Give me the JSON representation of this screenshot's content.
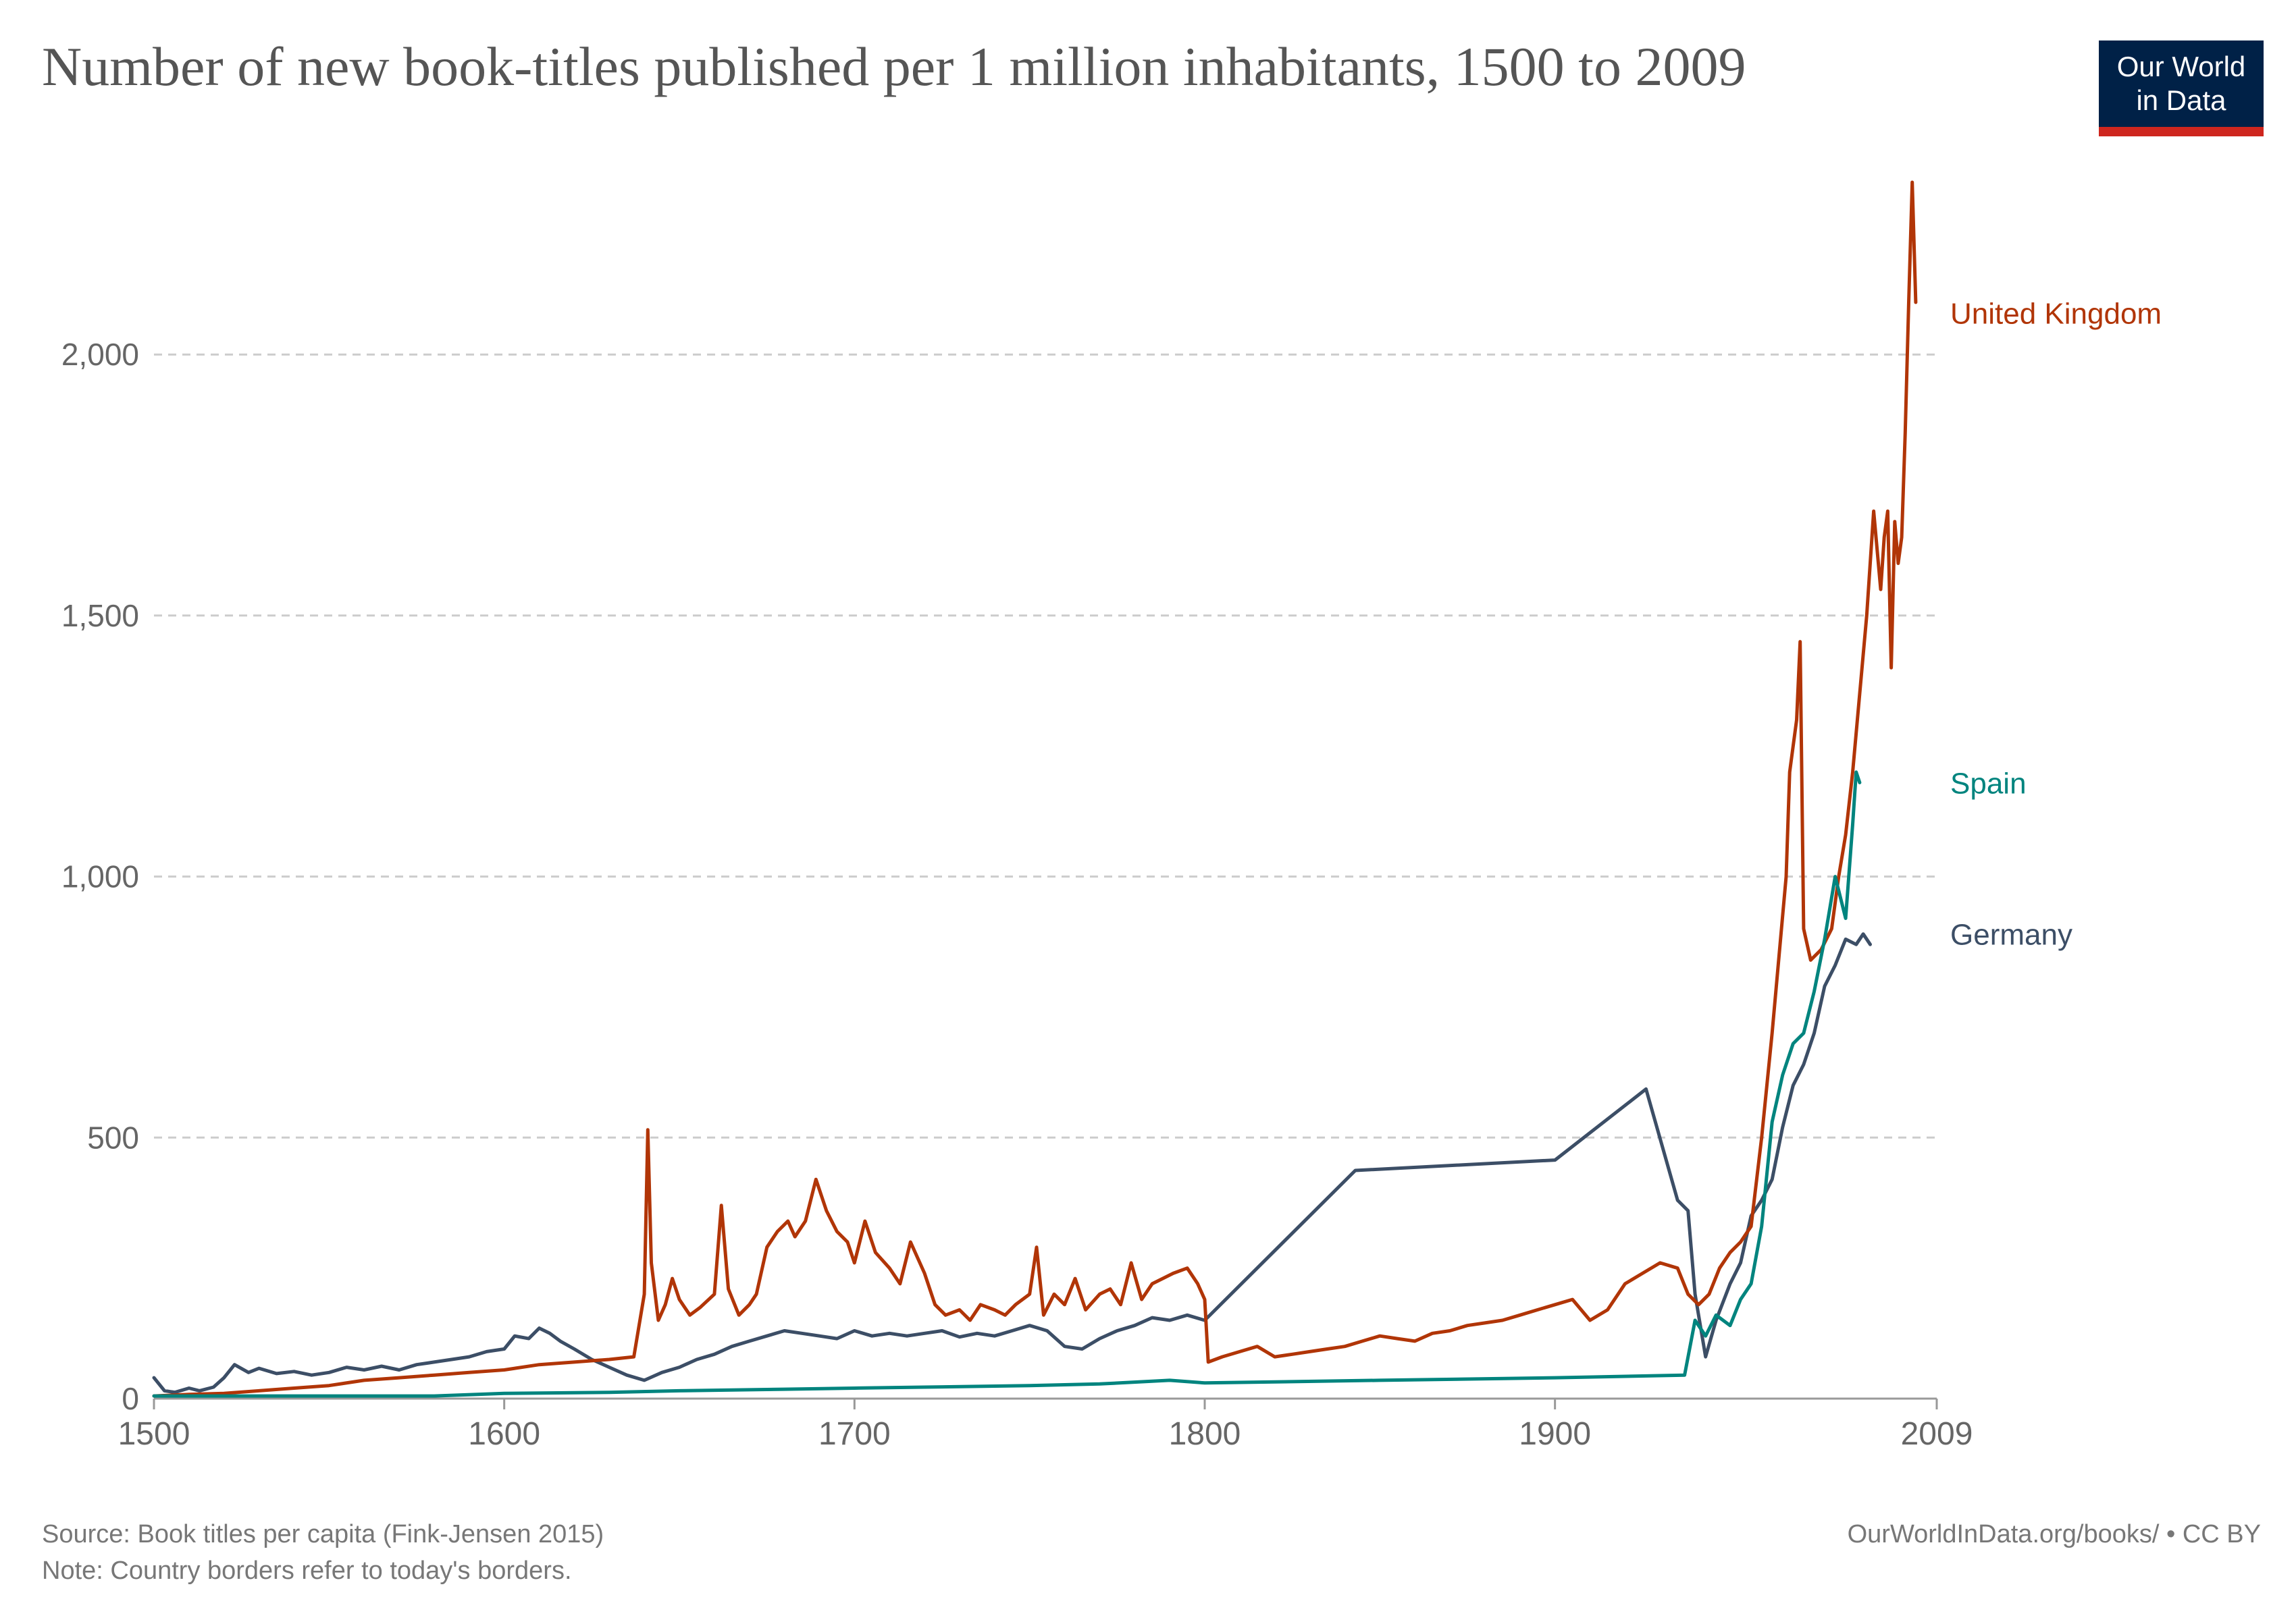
{
  "header": {
    "title": "Number of new book-titles published per 1 million inhabitants, 1500 to 2009",
    "logo_line1": "Our World",
    "logo_line2": "in Data"
  },
  "footer": {
    "source": "Source: Book titles per capita (Fink-Jensen 2015)",
    "note": "Note: Country borders refer to today's borders.",
    "url": "OurWorldInData.org/books/ • CC BY"
  },
  "chart_data": {
    "type": "line",
    "title": "Number of new book-titles published per 1 million inhabitants, 1500 to 2009",
    "xlabel": "",
    "ylabel": "",
    "xlim": [
      1500,
      2009
    ],
    "ylim": [
      0,
      2330
    ],
    "x_ticks": [
      1500,
      1600,
      1700,
      1800,
      1900,
      2009
    ],
    "x_tick_labels": [
      "1500",
      "1600",
      "1700",
      "1800",
      "1900",
      "2009"
    ],
    "y_ticks": [
      0,
      500,
      1000,
      1500,
      2000
    ],
    "y_tick_labels": [
      "0",
      "500",
      "1,000",
      "1,500",
      "2,000"
    ],
    "grid": "horizontal dashed",
    "legend": "line-end labels, right",
    "series": [
      {
        "name": "Germany",
        "color": "#3c4e66",
        "points": [
          [
            1500,
            40
          ],
          [
            1503,
            15
          ],
          [
            1506,
            12
          ],
          [
            1510,
            20
          ],
          [
            1513,
            15
          ],
          [
            1517,
            22
          ],
          [
            1520,
            40
          ],
          [
            1523,
            65
          ],
          [
            1527,
            50
          ],
          [
            1530,
            58
          ],
          [
            1535,
            48
          ],
          [
            1540,
            52
          ],
          [
            1545,
            45
          ],
          [
            1550,
            50
          ],
          [
            1555,
            60
          ],
          [
            1560,
            55
          ],
          [
            1565,
            62
          ],
          [
            1570,
            55
          ],
          [
            1575,
            65
          ],
          [
            1580,
            70
          ],
          [
            1585,
            75
          ],
          [
            1590,
            80
          ],
          [
            1595,
            90
          ],
          [
            1600,
            95
          ],
          [
            1603,
            120
          ],
          [
            1607,
            115
          ],
          [
            1610,
            135
          ],
          [
            1613,
            125
          ],
          [
            1616,
            110
          ],
          [
            1620,
            95
          ],
          [
            1625,
            75
          ],
          [
            1630,
            60
          ],
          [
            1635,
            45
          ],
          [
            1640,
            35
          ],
          [
            1645,
            50
          ],
          [
            1650,
            60
          ],
          [
            1655,
            75
          ],
          [
            1660,
            85
          ],
          [
            1665,
            100
          ],
          [
            1670,
            110
          ],
          [
            1675,
            120
          ],
          [
            1680,
            130
          ],
          [
            1685,
            125
          ],
          [
            1690,
            120
          ],
          [
            1695,
            115
          ],
          [
            1700,
            130
          ],
          [
            1705,
            120
          ],
          [
            1710,
            125
          ],
          [
            1715,
            120
          ],
          [
            1720,
            125
          ],
          [
            1725,
            130
          ],
          [
            1730,
            118
          ],
          [
            1735,
            125
          ],
          [
            1740,
            120
          ],
          [
            1745,
            130
          ],
          [
            1750,
            140
          ],
          [
            1755,
            130
          ],
          [
            1760,
            100
          ],
          [
            1765,
            95
          ],
          [
            1770,
            115
          ],
          [
            1775,
            130
          ],
          [
            1780,
            140
          ],
          [
            1785,
            155
          ],
          [
            1790,
            150
          ],
          [
            1795,
            160
          ],
          [
            1800,
            150
          ],
          [
            1843,
            437
          ],
          [
            1900,
            457
          ],
          [
            1926,
            593
          ],
          [
            1935,
            380
          ],
          [
            1938,
            360
          ],
          [
            1940,
            200
          ],
          [
            1943,
            80
          ],
          [
            1946,
            150
          ],
          [
            1950,
            220
          ],
          [
            1953,
            260
          ],
          [
            1956,
            350
          ],
          [
            1959,
            380
          ],
          [
            1962,
            420
          ],
          [
            1965,
            520
          ],
          [
            1968,
            600
          ],
          [
            1971,
            640
          ],
          [
            1974,
            700
          ],
          [
            1977,
            790
          ],
          [
            1980,
            830
          ],
          [
            1983,
            880
          ],
          [
            1986,
            870
          ],
          [
            1988,
            890
          ],
          [
            1990,
            870
          ]
        ]
      },
      {
        "name": "United Kingdom",
        "color": "#b13507",
        "points": [
          [
            1500,
            5
          ],
          [
            1510,
            8
          ],
          [
            1520,
            10
          ],
          [
            1530,
            15
          ],
          [
            1540,
            20
          ],
          [
            1550,
            25
          ],
          [
            1560,
            35
          ],
          [
            1570,
            40
          ],
          [
            1580,
            45
          ],
          [
            1590,
            50
          ],
          [
            1600,
            55
          ],
          [
            1610,
            65
          ],
          [
            1620,
            70
          ],
          [
            1630,
            75
          ],
          [
            1637,
            80
          ],
          [
            1640,
            200
          ],
          [
            1641,
            515
          ],
          [
            1642,
            260
          ],
          [
            1644,
            150
          ],
          [
            1646,
            180
          ],
          [
            1648,
            230
          ],
          [
            1650,
            190
          ],
          [
            1653,
            160
          ],
          [
            1656,
            175
          ],
          [
            1660,
            200
          ],
          [
            1662,
            370
          ],
          [
            1664,
            210
          ],
          [
            1667,
            160
          ],
          [
            1670,
            180
          ],
          [
            1672,
            200
          ],
          [
            1675,
            290
          ],
          [
            1678,
            320
          ],
          [
            1681,
            340
          ],
          [
            1683,
            310
          ],
          [
            1686,
            340
          ],
          [
            1689,
            420
          ],
          [
            1692,
            360
          ],
          [
            1695,
            320
          ],
          [
            1698,
            300
          ],
          [
            1700,
            260
          ],
          [
            1703,
            340
          ],
          [
            1706,
            280
          ],
          [
            1710,
            250
          ],
          [
            1713,
            220
          ],
          [
            1716,
            300
          ],
          [
            1720,
            240
          ],
          [
            1723,
            180
          ],
          [
            1726,
            160
          ],
          [
            1730,
            170
          ],
          [
            1733,
            150
          ],
          [
            1736,
            180
          ],
          [
            1740,
            170
          ],
          [
            1743,
            160
          ],
          [
            1746,
            180
          ],
          [
            1750,
            200
          ],
          [
            1752,
            290
          ],
          [
            1754,
            160
          ],
          [
            1757,
            200
          ],
          [
            1760,
            180
          ],
          [
            1763,
            230
          ],
          [
            1766,
            170
          ],
          [
            1770,
            200
          ],
          [
            1773,
            210
          ],
          [
            1776,
            180
          ],
          [
            1779,
            260
          ],
          [
            1782,
            190
          ],
          [
            1785,
            220
          ],
          [
            1788,
            230
          ],
          [
            1791,
            240
          ],
          [
            1795,
            250
          ],
          [
            1798,
            220
          ],
          [
            1800,
            190
          ],
          [
            1801,
            70
          ],
          [
            1805,
            80
          ],
          [
            1810,
            90
          ],
          [
            1815,
            100
          ],
          [
            1820,
            80
          ],
          [
            1825,
            85
          ],
          [
            1830,
            90
          ],
          [
            1835,
            95
          ],
          [
            1840,
            100
          ],
          [
            1845,
            110
          ],
          [
            1850,
            120
          ],
          [
            1855,
            115
          ],
          [
            1860,
            110
          ],
          [
            1865,
            125
          ],
          [
            1870,
            130
          ],
          [
            1875,
            140
          ],
          [
            1880,
            145
          ],
          [
            1885,
            150
          ],
          [
            1890,
            160
          ],
          [
            1895,
            170
          ],
          [
            1900,
            180
          ],
          [
            1905,
            190
          ],
          [
            1910,
            150
          ],
          [
            1915,
            170
          ],
          [
            1920,
            220
          ],
          [
            1925,
            240
          ],
          [
            1930,
            260
          ],
          [
            1935,
            250
          ],
          [
            1938,
            200
          ],
          [
            1941,
            180
          ],
          [
            1944,
            200
          ],
          [
            1947,
            250
          ],
          [
            1950,
            280
          ],
          [
            1953,
            300
          ],
          [
            1956,
            330
          ],
          [
            1959,
            500
          ],
          [
            1962,
            700
          ],
          [
            1964,
            850
          ],
          [
            1966,
            1000
          ],
          [
            1967,
            1200
          ],
          [
            1969,
            1300
          ],
          [
            1970,
            1450
          ],
          [
            1971,
            900
          ],
          [
            1973,
            840
          ],
          [
            1976,
            860
          ],
          [
            1979,
            900
          ],
          [
            1981,
            1000
          ],
          [
            1983,
            1080
          ],
          [
            1985,
            1200
          ],
          [
            1987,
            1350
          ],
          [
            1989,
            1500
          ],
          [
            1991,
            1700
          ],
          [
            1993,
            1550
          ],
          [
            1994,
            1650
          ],
          [
            1995,
            1700
          ],
          [
            1996,
            1400
          ],
          [
            1997,
            1680
          ],
          [
            1998,
            1600
          ],
          [
            1999,
            1650
          ],
          [
            2000,
            1850
          ],
          [
            2001,
            2100
          ],
          [
            2002,
            2330
          ],
          [
            2003,
            2100
          ]
        ]
      },
      {
        "name": "Spain",
        "color": "#00847e",
        "points": [
          [
            1500,
            5
          ],
          [
            1540,
            5
          ],
          [
            1580,
            5
          ],
          [
            1600,
            10
          ],
          [
            1630,
            12
          ],
          [
            1650,
            15
          ],
          [
            1680,
            18
          ],
          [
            1700,
            20
          ],
          [
            1720,
            22
          ],
          [
            1750,
            25
          ],
          [
            1770,
            28
          ],
          [
            1790,
            35
          ],
          [
            1800,
            30
          ],
          [
            1850,
            35
          ],
          [
            1900,
            40
          ],
          [
            1937,
            45
          ],
          [
            1940,
            150
          ],
          [
            1943,
            120
          ],
          [
            1946,
            160
          ],
          [
            1950,
            140
          ],
          [
            1953,
            190
          ],
          [
            1956,
            220
          ],
          [
            1959,
            330
          ],
          [
            1962,
            530
          ],
          [
            1965,
            620
          ],
          [
            1968,
            680
          ],
          [
            1971,
            700
          ],
          [
            1974,
            780
          ],
          [
            1977,
            880
          ],
          [
            1980,
            1000
          ],
          [
            1983,
            920
          ],
          [
            1985,
            1100
          ],
          [
            1986,
            1200
          ],
          [
            1987,
            1180
          ]
        ]
      }
    ]
  }
}
